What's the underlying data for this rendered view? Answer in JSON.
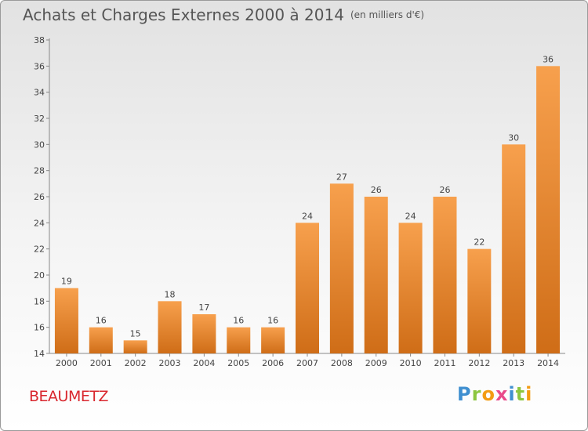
{
  "title": "Achats et Charges Externes 2000 à 2014",
  "unit": "(en milliers d'€)",
  "commune": "BEAUMETZ",
  "logo": "Proxiti",
  "colors": {
    "bar_light": "#f7a04d",
    "bar_dark": "#cf6d17",
    "axis": "#888888",
    "title": "#555555",
    "commune": "#d9272e"
  },
  "chart_data": {
    "type": "bar",
    "categories": [
      "2000",
      "2001",
      "2002",
      "2003",
      "2004",
      "2005",
      "2006",
      "2007",
      "2008",
      "2009",
      "2010",
      "2011",
      "2012",
      "2013",
      "2014"
    ],
    "values": [
      19,
      16,
      15,
      18,
      17,
      16,
      16,
      24,
      27,
      26,
      24,
      26,
      22,
      30,
      36
    ],
    "ylim": [
      14,
      38
    ],
    "yticks": [
      14,
      16,
      18,
      20,
      22,
      24,
      26,
      28,
      30,
      32,
      34,
      36,
      38
    ],
    "grid": false,
    "legend": "none"
  }
}
